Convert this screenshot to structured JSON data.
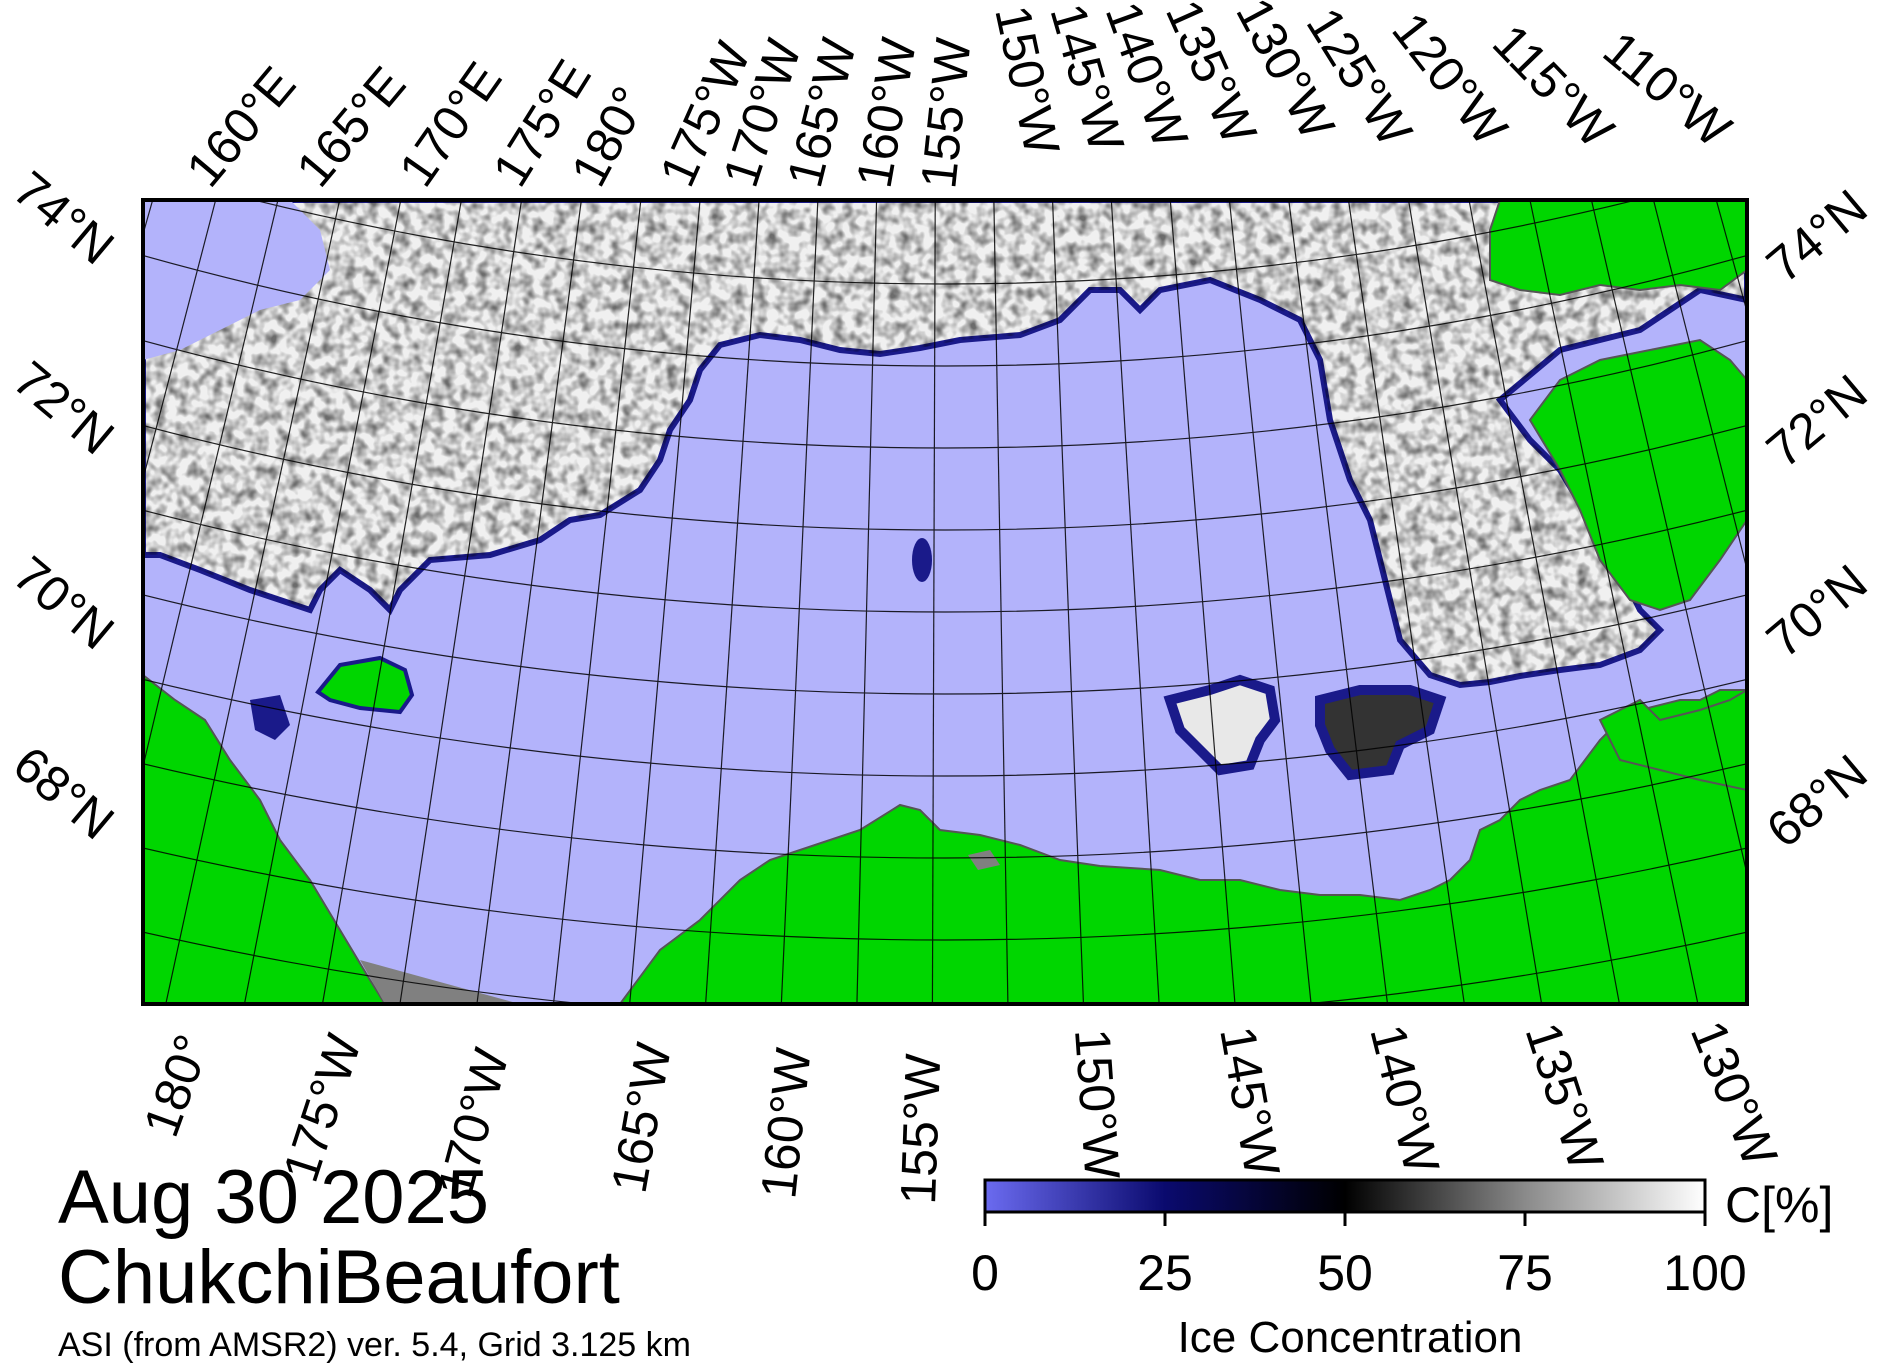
{
  "title": {
    "date": "Aug 30 2025",
    "region": "ChukchiBeaufort",
    "product": "ASI (from AMSR2) ver. 5.4,  Grid 3.125 km"
  },
  "top_lon_labels": [
    "160°E",
    "165°E",
    "170°E",
    "175°E",
    "180°",
    "175°W",
    "170°W",
    "165°W",
    "160°W",
    "155°W",
    "150°W",
    "145°W",
    "140°W",
    "135°W",
    "130°W",
    "125°W",
    "120°W",
    "115°W",
    "110°W"
  ],
  "bottom_lon_labels": [
    "180°",
    "175°W",
    "170°W",
    "165°W",
    "160°W",
    "155°W",
    "150°W",
    "145°W",
    "140°W",
    "135°W",
    "130°W"
  ],
  "left_lat_labels": [
    "74°N",
    "72°N",
    "70°N",
    "68°N"
  ],
  "right_lat_labels": [
    "74°N",
    "72°N",
    "70°N",
    "68°N"
  ],
  "colorbar": {
    "ticks": [
      "0",
      "25",
      "50",
      "75",
      "100"
    ],
    "tick_values": [
      0,
      25,
      50,
      75,
      100
    ],
    "unit": "C[%]",
    "label": "Ice Concentration",
    "stops": [
      {
        "value": 0,
        "color": "#6b6bf0"
      },
      {
        "value": 25,
        "color": "#0a0a6e"
      },
      {
        "value": 50,
        "color": "#000000"
      },
      {
        "value": 75,
        "color": "#8a8a8a"
      },
      {
        "value": 100,
        "color": "#ffffff"
      }
    ]
  },
  "colors": {
    "open_water": "#b3b3fb",
    "land": "#00d600",
    "land_mask": "#808080",
    "ice_high": "#f0f0f0",
    "ice_edge": "#1a1a8a"
  }
}
